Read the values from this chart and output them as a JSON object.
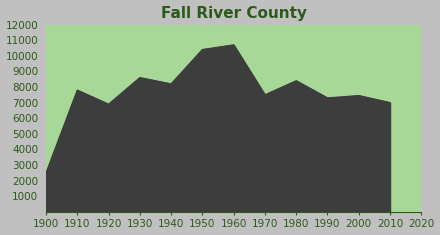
{
  "title": "Fall River County",
  "title_color": "#2d5a1b",
  "title_fontsize": 11,
  "plot_bg_color": "#a8d898",
  "fill_color": "#3d3d3d",
  "line_color": "#3d3d3d",
  "years": [
    1900,
    1910,
    1920,
    1930,
    1940,
    1950,
    1960,
    1970,
    1980,
    1990,
    2000,
    2010
  ],
  "values": [
    2500,
    7800,
    6900,
    8600,
    8200,
    10400,
    10700,
    7500,
    8400,
    7300,
    7450,
    7000
  ],
  "xlim": [
    1900,
    2020
  ],
  "ylim": [
    0,
    12000
  ],
  "yticks": [
    1000,
    2000,
    3000,
    4000,
    5000,
    6000,
    7000,
    8000,
    9000,
    10000,
    11000,
    12000
  ],
  "xticks": [
    1900,
    1910,
    1920,
    1930,
    1940,
    1950,
    1960,
    1970,
    1980,
    1990,
    2000,
    2010,
    2020
  ],
  "tick_color": "#2d5a1b",
  "tick_fontsize": 7.5,
  "outer_bg": "#c0c0c0"
}
